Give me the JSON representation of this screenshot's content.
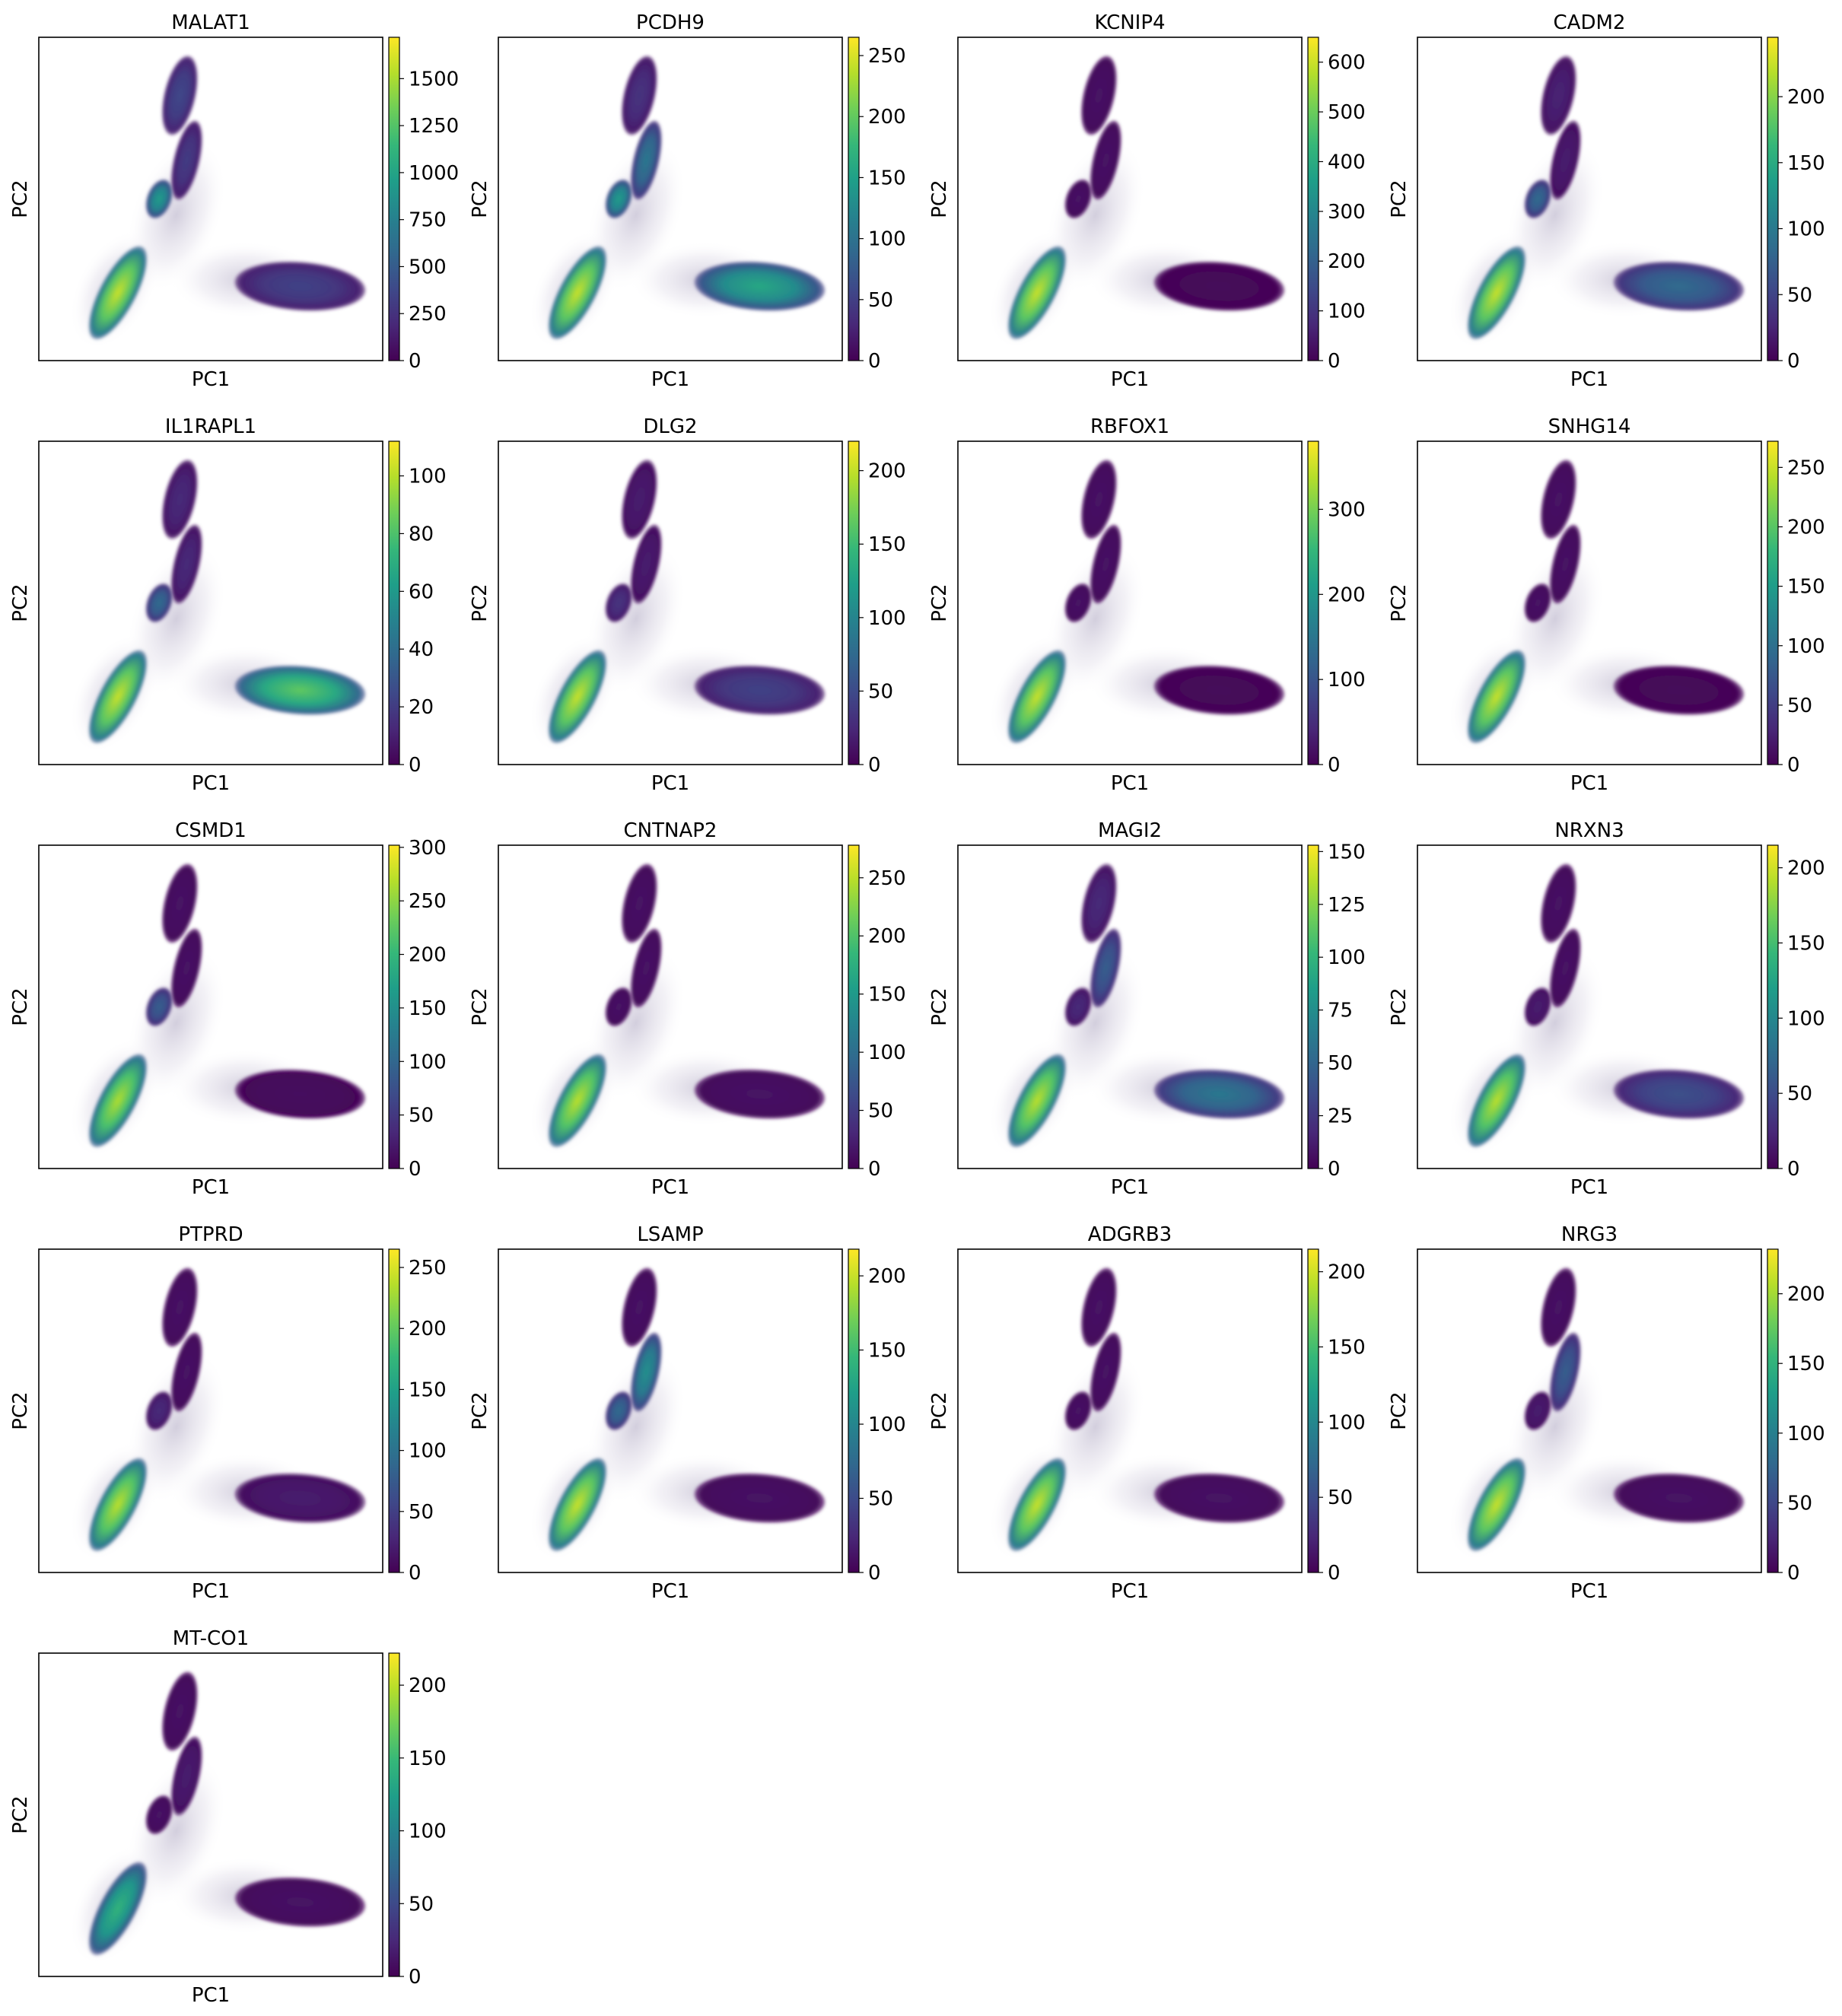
{
  "figure": {
    "description_free": true
  },
  "colormap": {
    "name": "viridis",
    "stops": [
      "#440154",
      "#482878",
      "#3e4989",
      "#31688e",
      "#26828e",
      "#1f9e89",
      "#35b779",
      "#6ece58",
      "#b5de2b",
      "#fde725"
    ]
  },
  "chart_data": [
    {
      "type": "scatter",
      "title": "MALAT1",
      "xlabel": "PC1",
      "ylabel": "PC2",
      "colorbar": {
        "ticks": [
          0,
          250,
          500,
          750,
          1000,
          1250,
          1500
        ],
        "max": 1720
      },
      "cluster_levels": {
        "A": 0.92,
        "B": 0.55,
        "C": 0.18,
        "D": 0.22,
        "E": 0.2
      }
    },
    {
      "type": "scatter",
      "title": "PCDH9",
      "xlabel": "PC1",
      "ylabel": "PC2",
      "colorbar": {
        "ticks": [
          0,
          50,
          100,
          150,
          200,
          250
        ],
        "max": 265
      },
      "cluster_levels": {
        "A": 0.92,
        "B": 0.55,
        "C": 0.4,
        "D": 0.15,
        "E": 0.6
      }
    },
    {
      "type": "scatter",
      "title": "KCNIP4",
      "xlabel": "PC1",
      "ylabel": "PC2",
      "colorbar": {
        "ticks": [
          0,
          100,
          200,
          300,
          400,
          500,
          600
        ],
        "max": 650
      },
      "cluster_levels": {
        "A": 0.92,
        "B": 0.05,
        "C": 0.05,
        "D": 0.05,
        "E": 0.02
      }
    },
    {
      "type": "scatter",
      "title": "CADM2",
      "xlabel": "PC1",
      "ylabel": "PC2",
      "colorbar": {
        "ticks": [
          0,
          50,
          100,
          150,
          200
        ],
        "max": 245
      },
      "cluster_levels": {
        "A": 0.92,
        "B": 0.35,
        "C": 0.08,
        "D": 0.1,
        "E": 0.35
      }
    },
    {
      "type": "scatter",
      "title": "IL1RAPL1",
      "xlabel": "PC1",
      "ylabel": "PC2",
      "colorbar": {
        "ticks": [
          0,
          20,
          40,
          60,
          80,
          100
        ],
        "max": 112
      },
      "cluster_levels": {
        "A": 0.92,
        "B": 0.35,
        "C": 0.12,
        "D": 0.12,
        "E": 0.75
      }
    },
    {
      "type": "scatter",
      "title": "DLG2",
      "xlabel": "PC1",
      "ylabel": "PC2",
      "colorbar": {
        "ticks": [
          0,
          50,
          100,
          150,
          200
        ],
        "max": 220
      },
      "cluster_levels": {
        "A": 0.92,
        "B": 0.15,
        "C": 0.08,
        "D": 0.08,
        "E": 0.2
      }
    },
    {
      "type": "scatter",
      "title": "RBFOX1",
      "xlabel": "PC1",
      "ylabel": "PC2",
      "colorbar": {
        "ticks": [
          0,
          100,
          200,
          300
        ],
        "max": 380
      },
      "cluster_levels": {
        "A": 0.92,
        "B": 0.05,
        "C": 0.05,
        "D": 0.05,
        "E": 0.02
      }
    },
    {
      "type": "scatter",
      "title": "SNHG14",
      "xlabel": "PC1",
      "ylabel": "PC2",
      "colorbar": {
        "ticks": [
          0,
          50,
          100,
          150,
          200,
          250
        ],
        "max": 272
      },
      "cluster_levels": {
        "A": 0.92,
        "B": 0.05,
        "C": 0.05,
        "D": 0.05,
        "E": 0.02
      }
    },
    {
      "type": "scatter",
      "title": "CSMD1",
      "xlabel": "PC1",
      "ylabel": "PC2",
      "colorbar": {
        "ticks": [
          0,
          50,
          100,
          150,
          200,
          250,
          300
        ],
        "max": 302
      },
      "cluster_levels": {
        "A": 0.88,
        "B": 0.3,
        "C": 0.05,
        "D": 0.05,
        "E": 0.03
      }
    },
    {
      "type": "scatter",
      "title": "CNTNAP2",
      "xlabel": "PC1",
      "ylabel": "PC2",
      "colorbar": {
        "ticks": [
          0,
          50,
          100,
          150,
          200,
          250
        ],
        "max": 278
      },
      "cluster_levels": {
        "A": 0.9,
        "B": 0.05,
        "C": 0.05,
        "D": 0.05,
        "E": 0.05
      }
    },
    {
      "type": "scatter",
      "title": "MAGI2",
      "xlabel": "PC1",
      "ylabel": "PC2",
      "colorbar": {
        "ticks": [
          0,
          25,
          50,
          75,
          100,
          125,
          150
        ],
        "max": 153
      },
      "cluster_levels": {
        "A": 0.9,
        "B": 0.12,
        "C": 0.3,
        "D": 0.12,
        "E": 0.4
      }
    },
    {
      "type": "scatter",
      "title": "NRXN3",
      "xlabel": "PC1",
      "ylabel": "PC2",
      "colorbar": {
        "ticks": [
          0,
          50,
          100,
          150,
          200
        ],
        "max": 215
      },
      "cluster_levels": {
        "A": 0.9,
        "B": 0.08,
        "C": 0.05,
        "D": 0.05,
        "E": 0.25
      }
    },
    {
      "type": "scatter",
      "title": "PTPRD",
      "xlabel": "PC1",
      "ylabel": "PC2",
      "colorbar": {
        "ticks": [
          0,
          50,
          100,
          150,
          200,
          250
        ],
        "max": 265
      },
      "cluster_levels": {
        "A": 0.9,
        "B": 0.12,
        "C": 0.05,
        "D": 0.05,
        "E": 0.08
      }
    },
    {
      "type": "scatter",
      "title": "LSAMP",
      "xlabel": "PC1",
      "ylabel": "PC2",
      "colorbar": {
        "ticks": [
          0,
          50,
          100,
          150,
          200
        ],
        "max": 218
      },
      "cluster_levels": {
        "A": 0.92,
        "B": 0.35,
        "C": 0.5,
        "D": 0.05,
        "E": 0.05
      }
    },
    {
      "type": "scatter",
      "title": "ADGRB3",
      "xlabel": "PC1",
      "ylabel": "PC2",
      "colorbar": {
        "ticks": [
          0,
          50,
          100,
          150,
          200
        ],
        "max": 215
      },
      "cluster_levels": {
        "A": 0.92,
        "B": 0.05,
        "C": 0.05,
        "D": 0.05,
        "E": 0.05
      }
    },
    {
      "type": "scatter",
      "title": "NRG3",
      "xlabel": "PC1",
      "ylabel": "PC2",
      "colorbar": {
        "ticks": [
          0,
          50,
          100,
          150,
          200
        ],
        "max": 232
      },
      "cluster_levels": {
        "A": 0.92,
        "B": 0.08,
        "C": 0.3,
        "D": 0.05,
        "E": 0.05
      }
    },
    {
      "type": "scatter",
      "title": "MT-CO1",
      "xlabel": "PC1",
      "ylabel": "PC2",
      "colorbar": {
        "ticks": [
          0,
          50,
          100,
          150,
          200
        ],
        "max": 222
      },
      "cluster_levels": {
        "A": 0.65,
        "B": 0.05,
        "C": 0.08,
        "D": 0.05,
        "E": 0.05
      }
    }
  ]
}
